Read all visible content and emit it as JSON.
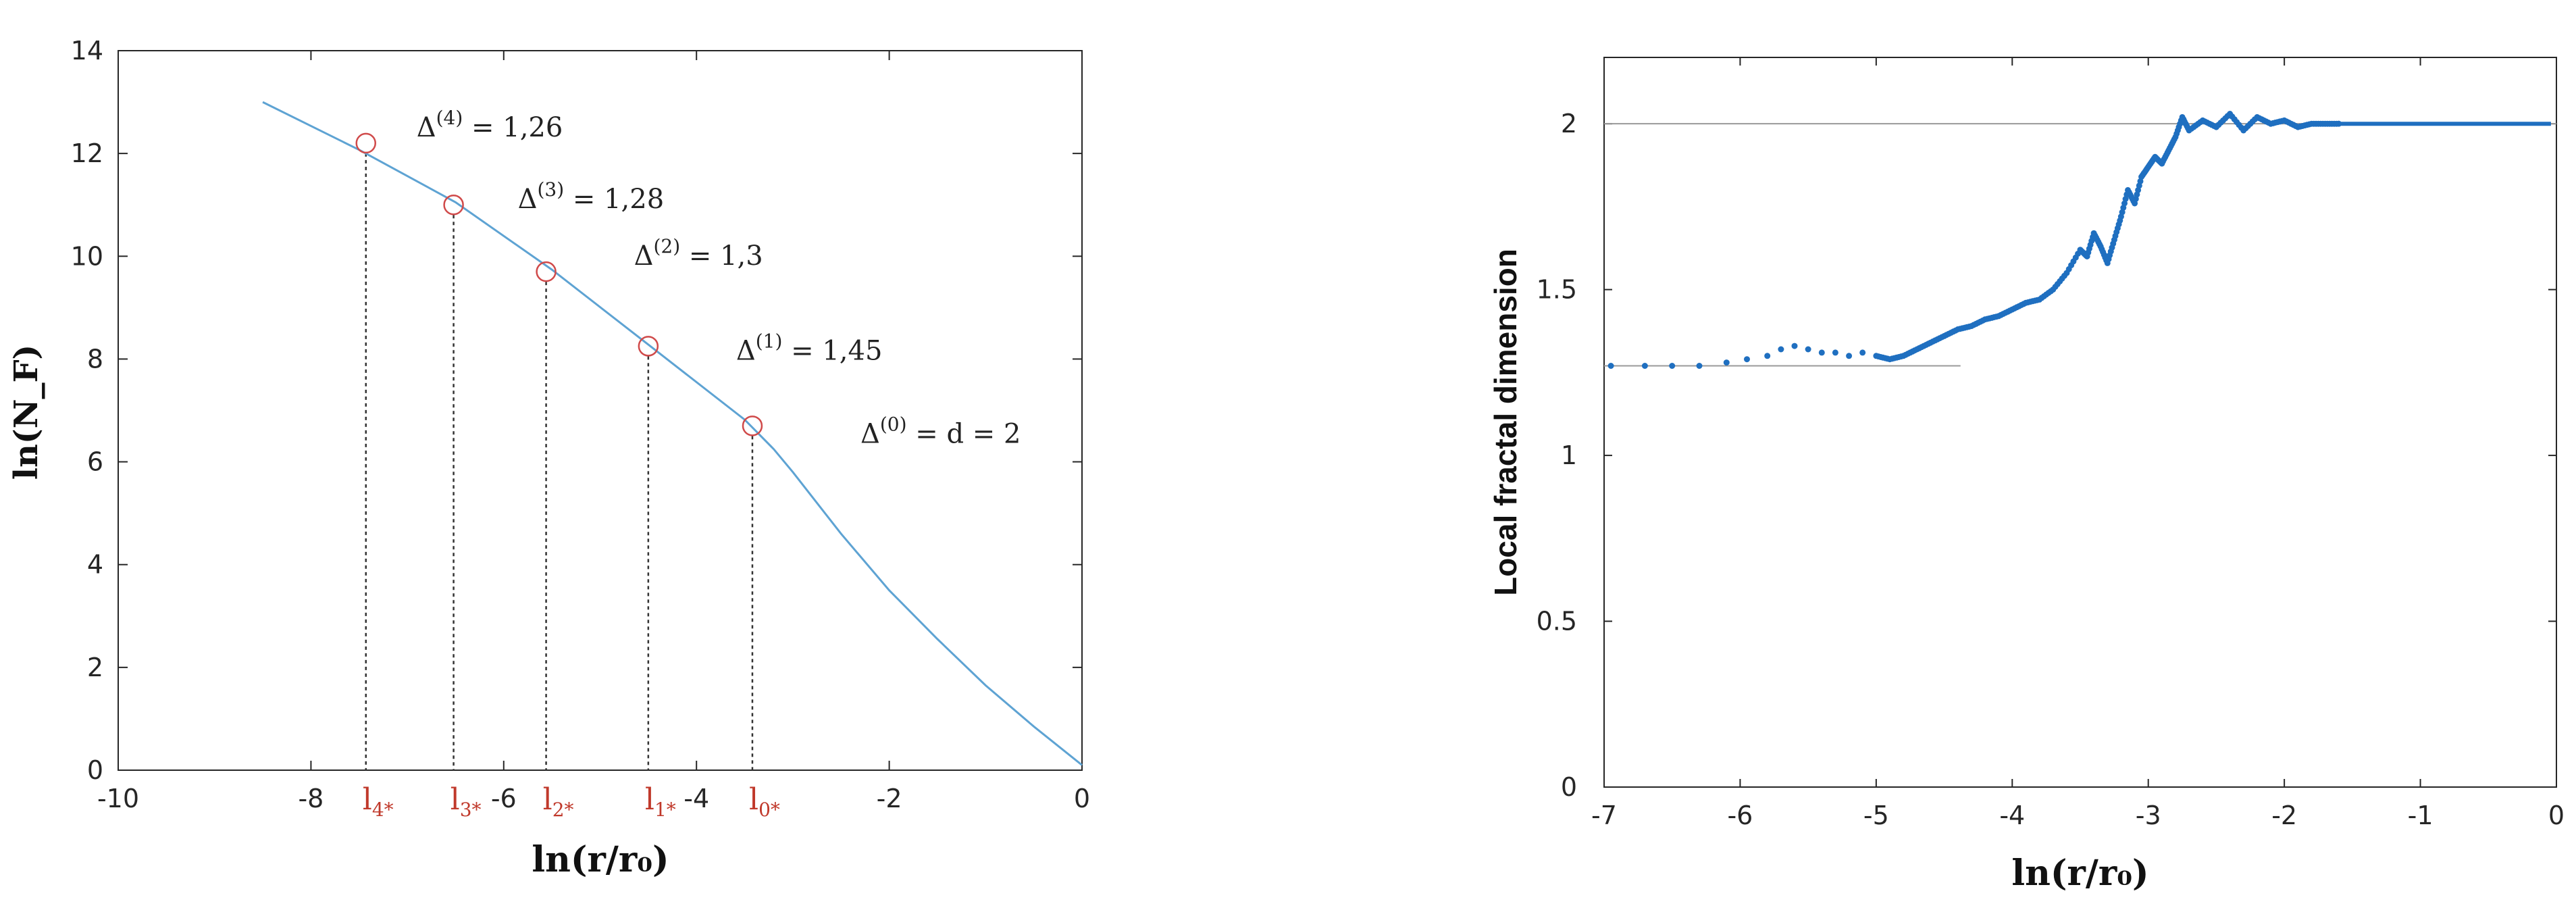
{
  "chart_data": [
    {
      "type": "line",
      "xlabel": "ln(r/r₀)",
      "ylabel": "ln(N_F)",
      "xlim": [
        -10,
        0
      ],
      "ylim": [
        0,
        14
      ],
      "xticks": [
        -10,
        -8,
        -6,
        -4,
        -2,
        0
      ],
      "yticks": [
        0,
        2,
        4,
        6,
        8,
        10,
        12,
        14
      ],
      "grid": false,
      "series": [
        {
          "color": "#5ea3d3",
          "x": [
            -8.5,
            -7.5,
            -6.5,
            -5.5,
            -4.5,
            -3.5,
            -3.2,
            -3.0,
            -2.5,
            -2.0,
            -1.5,
            -1.0,
            -0.5,
            0.0
          ],
          "y": [
            13.0,
            12.07,
            11.05,
            9.74,
            8.28,
            6.82,
            6.25,
            5.8,
            4.6,
            3.5,
            2.55,
            1.65,
            0.85,
            0.1
          ]
        }
      ],
      "markers": [
        {
          "x": -7.43,
          "y": 12.2,
          "label": "l",
          "sub": "4*",
          "annotation": {
            "delta": "Δ",
            "sup": "(4)",
            "text": "= 1,26"
          }
        },
        {
          "x": -6.52,
          "y": 11.0,
          "label": "l",
          "sub": "3*",
          "annotation": {
            "delta": "Δ",
            "sup": "(3)",
            "text": "= 1,28"
          }
        },
        {
          "x": -5.56,
          "y": 9.7,
          "label": "l",
          "sub": "2*",
          "annotation": {
            "delta": "Δ",
            "sup": "(2)",
            "text": "= 1,3"
          }
        },
        {
          "x": -4.5,
          "y": 8.25,
          "label": "l",
          "sub": "1*",
          "annotation": {
            "delta": "Δ",
            "sup": "(1)",
            "text": "= 1,45"
          }
        },
        {
          "x": -3.42,
          "y": 6.7,
          "label": "l",
          "sub": "0*",
          "annotation": {
            "delta": "Δ",
            "sup": "(0)",
            "text": "= d = 2"
          }
        }
      ],
      "marker_color": "#d04a4a"
    },
    {
      "type": "scatter",
      "xlabel": "ln(r/r₀)",
      "ylabel": "Local fractal dimension",
      "xlim": [
        -7,
        0
      ],
      "ylim": [
        0,
        2.2
      ],
      "xticks": [
        -7,
        -6,
        -5,
        -4,
        -3,
        -2,
        -1,
        0
      ],
      "yticks": [
        0,
        0.5,
        1,
        1.5,
        2
      ],
      "grid": false,
      "reference_lines": [
        {
          "y": 2.0,
          "x": [
            -7,
            0
          ]
        },
        {
          "y": 1.27,
          "x": [
            -7,
            -4.38
          ]
        }
      ],
      "series": [
        {
          "color": "#1f6fc0",
          "x": [
            -6.95,
            -6.7,
            -6.5,
            -6.3,
            -6.1,
            -5.95,
            -5.8,
            -5.7,
            -5.6,
            -5.5,
            -5.4,
            -5.3,
            -5.2,
            -5.1,
            -5.0,
            -4.9,
            -4.8,
            -4.7,
            -4.6,
            -4.5,
            -4.4,
            -4.3,
            -4.2,
            -4.1,
            -4.0,
            -3.9,
            -3.8,
            -3.7,
            -3.6,
            -3.5,
            -3.45,
            -3.4,
            -3.35,
            -3.3,
            -3.25,
            -3.2,
            -3.15,
            -3.1,
            -3.05,
            -3.0,
            -2.95,
            -2.9,
            -2.85,
            -2.8,
            -2.75,
            -2.7,
            -2.6,
            -2.5,
            -2.4,
            -2.3,
            -2.2,
            -2.1,
            -2.0,
            -1.9,
            -1.8,
            -1.7,
            -1.6
          ],
          "y": [
            1.27,
            1.27,
            1.27,
            1.27,
            1.28,
            1.29,
            1.3,
            1.32,
            1.33,
            1.32,
            1.31,
            1.31,
            1.3,
            1.31,
            1.3,
            1.29,
            1.3,
            1.32,
            1.34,
            1.36,
            1.38,
            1.39,
            1.41,
            1.42,
            1.44,
            1.46,
            1.47,
            1.5,
            1.55,
            1.62,
            1.6,
            1.67,
            1.63,
            1.58,
            1.65,
            1.72,
            1.8,
            1.76,
            1.84,
            1.87,
            1.9,
            1.88,
            1.92,
            1.96,
            2.02,
            1.98,
            2.01,
            1.99,
            2.03,
            1.98,
            2.02,
            2.0,
            2.01,
            1.99,
            2.0,
            2.0,
            2.0
          ]
        },
        {
          "color": "#1f6fc0",
          "x": [
            -1.6,
            -1.2,
            -0.8,
            -0.4,
            -0.04
          ],
          "y": [
            2.0,
            2.0,
            2.0,
            2.0,
            2.0
          ]
        }
      ]
    }
  ]
}
